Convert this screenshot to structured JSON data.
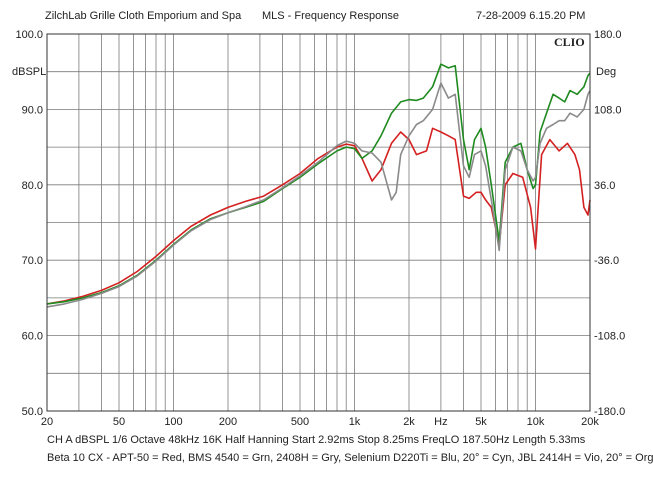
{
  "header": {
    "left": "ZilchLab Grille Cloth Emporium and Spa",
    "center": "MLS - Frequency Response",
    "right": "7-28-2009 6.15.20 PM"
  },
  "brand": "CLIO",
  "info": {
    "line1": "CH A   dBSPL   1/6 Octave   48kHz   16K   Half Hanning   Start 2.92ms     Stop 8.25ms     FreqLO 187.50Hz     Length 5.33ms",
    "line2": "Beta 10 CX - APT-50 = Red, BMS 4540 = Grn, 2408H = Gry, Selenium D220Ti = Blu, 20° = Cyn, JBL 2414H = Vio, 20° = Org"
  },
  "chart_data": {
    "type": "line",
    "title": "MLS - Frequency Response",
    "xscale": "log",
    "xlabel": "Hz",
    "ylabel": "dBSPL",
    "y2label": "Deg",
    "xlim": [
      20,
      20000
    ],
    "ylim": [
      50,
      100
    ],
    "y2lim": [
      -180,
      180
    ],
    "xticks": [
      {
        "value": 20,
        "label": "20"
      },
      {
        "value": 50,
        "label": "50"
      },
      {
        "value": 100,
        "label": "100"
      },
      {
        "value": 200,
        "label": "200"
      },
      {
        "value": 500,
        "label": "500"
      },
      {
        "value": 1000,
        "label": "1k"
      },
      {
        "value": 2000,
        "label": "2k"
      },
      {
        "value": 3000,
        "label": "Hz"
      },
      {
        "value": 5000,
        "label": "5k"
      },
      {
        "value": 10000,
        "label": "10k"
      },
      {
        "value": 20000,
        "label": "20k"
      }
    ],
    "yticks": [
      {
        "value": 100,
        "label": "100.0"
      },
      {
        "value": 90,
        "label": "90.0"
      },
      {
        "value": 80,
        "label": "80.0"
      },
      {
        "value": 70,
        "label": "70.0"
      },
      {
        "value": 60,
        "label": "60.0"
      },
      {
        "value": 50,
        "label": "50.0"
      }
    ],
    "y2ticks": [
      {
        "value": 180,
        "label": "180.0"
      },
      {
        "value": 108,
        "label": "108.0"
      },
      {
        "value": 36,
        "label": "36.0"
      },
      {
        "value": -36,
        "label": "-36.0"
      },
      {
        "value": -108,
        "label": "-108.0"
      },
      {
        "value": -180,
        "label": "-180.0"
      }
    ],
    "grid": true,
    "legend": "none",
    "series": [
      {
        "color": "#d42020",
        "points": [
          [
            20,
            64.2
          ],
          [
            25,
            64.6
          ],
          [
            31.5,
            65.2
          ],
          [
            40,
            66
          ],
          [
            50,
            67
          ],
          [
            63,
            68.5
          ],
          [
            80,
            70.5
          ],
          [
            100,
            72.6
          ],
          [
            125,
            74.5
          ],
          [
            160,
            76
          ],
          [
            200,
            77
          ],
          [
            250,
            77.8
          ],
          [
            315,
            78.5
          ],
          [
            400,
            80
          ],
          [
            500,
            81.5
          ],
          [
            630,
            83.5
          ],
          [
            800,
            85
          ],
          [
            900,
            85.4
          ],
          [
            1000,
            85.2
          ],
          [
            1100,
            83.5
          ],
          [
            1250,
            80.5
          ],
          [
            1400,
            82
          ],
          [
            1600,
            85.5
          ],
          [
            1800,
            87
          ],
          [
            2000,
            86
          ],
          [
            2200,
            84
          ],
          [
            2500,
            84.5
          ],
          [
            2700,
            87.5
          ],
          [
            3000,
            87
          ],
          [
            3300,
            86.5
          ],
          [
            3600,
            86
          ],
          [
            4000,
            78.5
          ],
          [
            4300,
            78.2
          ],
          [
            4700,
            79
          ],
          [
            5000,
            79
          ],
          [
            5300,
            78
          ],
          [
            5700,
            77
          ],
          [
            6300,
            72
          ],
          [
            6800,
            80
          ],
          [
            7500,
            81.5
          ],
          [
            8500,
            81
          ],
          [
            9400,
            77
          ],
          [
            10000,
            71.5
          ],
          [
            10800,
            84
          ],
          [
            12000,
            86
          ],
          [
            13500,
            84.5
          ],
          [
            15000,
            85.5
          ],
          [
            16500,
            84
          ],
          [
            17500,
            82
          ],
          [
            18500,
            77
          ],
          [
            19500,
            76
          ],
          [
            20000,
            78
          ]
        ]
      },
      {
        "color": "#1f8a1f",
        "points": [
          [
            20,
            64.2
          ],
          [
            25,
            64.5
          ],
          [
            31.5,
            65
          ],
          [
            40,
            65.7
          ],
          [
            50,
            66.6
          ],
          [
            63,
            68
          ],
          [
            80,
            70
          ],
          [
            100,
            72.1
          ],
          [
            125,
            74
          ],
          [
            160,
            75.5
          ],
          [
            200,
            76.3
          ],
          [
            250,
            77
          ],
          [
            315,
            77.8
          ],
          [
            400,
            79.5
          ],
          [
            500,
            81
          ],
          [
            630,
            82.8
          ],
          [
            800,
            84.5
          ],
          [
            900,
            85
          ],
          [
            1000,
            84.8
          ],
          [
            1100,
            83.5
          ],
          [
            1250,
            84.5
          ],
          [
            1400,
            86.5
          ],
          [
            1600,
            89.5
          ],
          [
            1800,
            91
          ],
          [
            2000,
            91.3
          ],
          [
            2200,
            91.2
          ],
          [
            2400,
            91.5
          ],
          [
            2700,
            93
          ],
          [
            3000,
            96
          ],
          [
            3300,
            95.5
          ],
          [
            3600,
            95.8
          ],
          [
            4000,
            86
          ],
          [
            4300,
            82
          ],
          [
            4600,
            86
          ],
          [
            5000,
            87.5
          ],
          [
            5300,
            85
          ],
          [
            5700,
            80
          ],
          [
            6300,
            72.5
          ],
          [
            6800,
            83
          ],
          [
            7500,
            85
          ],
          [
            8300,
            85.5
          ],
          [
            9000,
            82
          ],
          [
            9700,
            79.5
          ],
          [
            10000,
            80
          ],
          [
            10600,
            87
          ],
          [
            11500,
            89.5
          ],
          [
            12500,
            92
          ],
          [
            13500,
            91.5
          ],
          [
            14500,
            91
          ],
          [
            15500,
            92.5
          ],
          [
            17000,
            92
          ],
          [
            18500,
            93
          ],
          [
            19500,
            94.5
          ],
          [
            20000,
            94.8
          ]
        ]
      },
      {
        "color": "#8a8a8a",
        "points": [
          [
            20,
            63.8
          ],
          [
            25,
            64.2
          ],
          [
            31.5,
            64.8
          ],
          [
            40,
            65.6
          ],
          [
            50,
            66.5
          ],
          [
            63,
            67.9
          ],
          [
            80,
            69.9
          ],
          [
            100,
            72
          ],
          [
            125,
            73.9
          ],
          [
            160,
            75.4
          ],
          [
            200,
            76.3
          ],
          [
            250,
            77.1
          ],
          [
            315,
            78
          ],
          [
            400,
            79.6
          ],
          [
            500,
            81.2
          ],
          [
            630,
            83
          ],
          [
            800,
            85.2
          ],
          [
            900,
            85.8
          ],
          [
            1000,
            85.5
          ],
          [
            1100,
            84.5
          ],
          [
            1250,
            84.2
          ],
          [
            1400,
            83
          ],
          [
            1600,
            78
          ],
          [
            1700,
            79
          ],
          [
            1800,
            84
          ],
          [
            2000,
            86.5
          ],
          [
            2200,
            88
          ],
          [
            2400,
            88.5
          ],
          [
            2700,
            90
          ],
          [
            3000,
            93.5
          ],
          [
            3300,
            91.5
          ],
          [
            3600,
            92
          ],
          [
            4000,
            82.5
          ],
          [
            4300,
            81
          ],
          [
            4600,
            84
          ],
          [
            5000,
            84.5
          ],
          [
            5300,
            82.5
          ],
          [
            5700,
            78
          ],
          [
            6300,
            71.3
          ],
          [
            6800,
            82
          ],
          [
            7500,
            85
          ],
          [
            8300,
            84.5
          ],
          [
            9000,
            82
          ],
          [
            9700,
            80.5
          ],
          [
            10000,
            81
          ],
          [
            10600,
            85.5
          ],
          [
            11500,
            87.5
          ],
          [
            12500,
            88
          ],
          [
            13500,
            88.5
          ],
          [
            14500,
            88.5
          ],
          [
            15500,
            89.5
          ],
          [
            17000,
            89
          ],
          [
            18500,
            90
          ],
          [
            19500,
            92
          ],
          [
            20000,
            92.5
          ]
        ]
      }
    ]
  }
}
